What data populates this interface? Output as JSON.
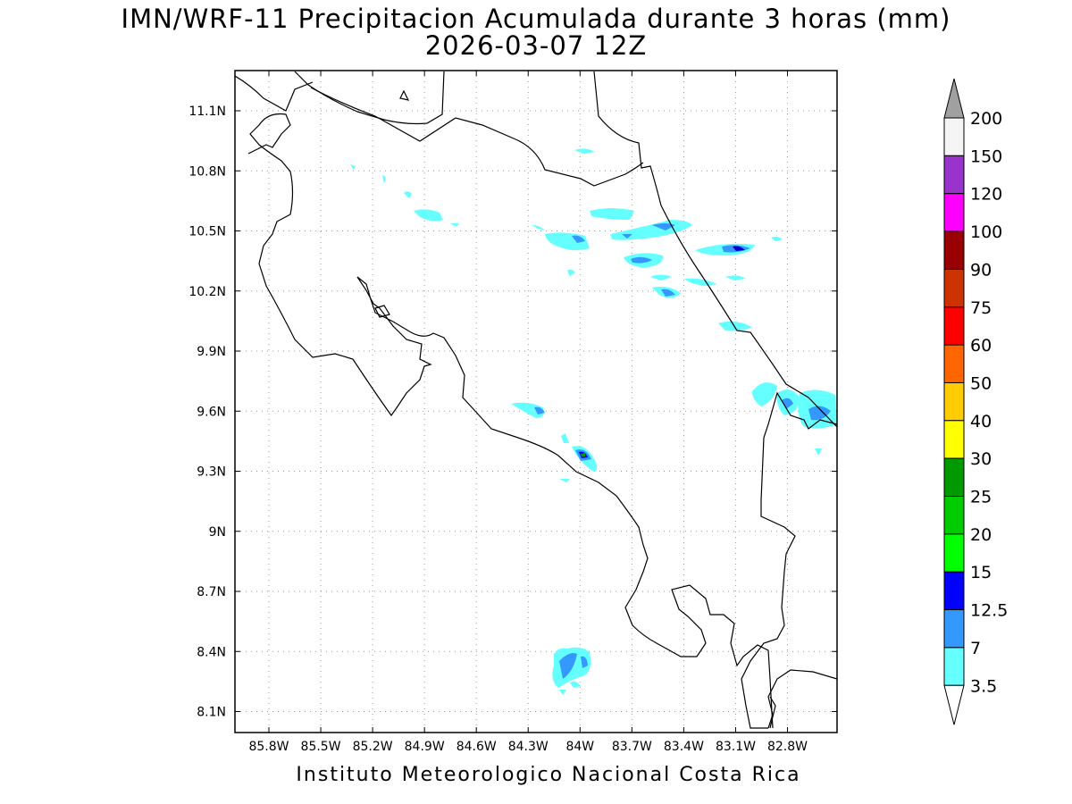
{
  "title": {
    "line1": "IMN/WRF-11 Precipitacion Acumulada durante 3 horas (mm)",
    "line2": "2026-03-07 12Z"
  },
  "footer": "Instituto Meteorologico Nacional Costa Rica",
  "map": {
    "lon_ticks": [
      "85.8W",
      "85.5W",
      "85.2W",
      "84.9W",
      "84.6W",
      "84.3W",
      "84W",
      "83.7W",
      "83.4W",
      "83.1W",
      "82.8W"
    ],
    "lat_ticks": [
      "11.1N",
      "10.8N",
      "10.5N",
      "10.2N",
      "9.9N",
      "9.6N",
      "9.3N",
      "9N",
      "8.7N",
      "8.4N",
      "8.1N"
    ],
    "grid": "dotted"
  },
  "colorbar": {
    "labels": [
      "200",
      "150",
      "120",
      "100",
      "90",
      "75",
      "60",
      "50",
      "40",
      "30",
      "25",
      "20",
      "15",
      "12.5",
      "7",
      "3.5"
    ],
    "colors": [
      "#f5f5f5",
      "#9933cc",
      "#ff00ff",
      "#990000",
      "#cc3300",
      "#ff0000",
      "#ff6600",
      "#ffcc00",
      "#ffff00",
      "#009900",
      "#00cc00",
      "#00ff00",
      "#0000ff",
      "#3399ff",
      "#66ffff"
    ],
    "over_color": "#a0a0a0",
    "under_color": "#ffffff"
  }
}
